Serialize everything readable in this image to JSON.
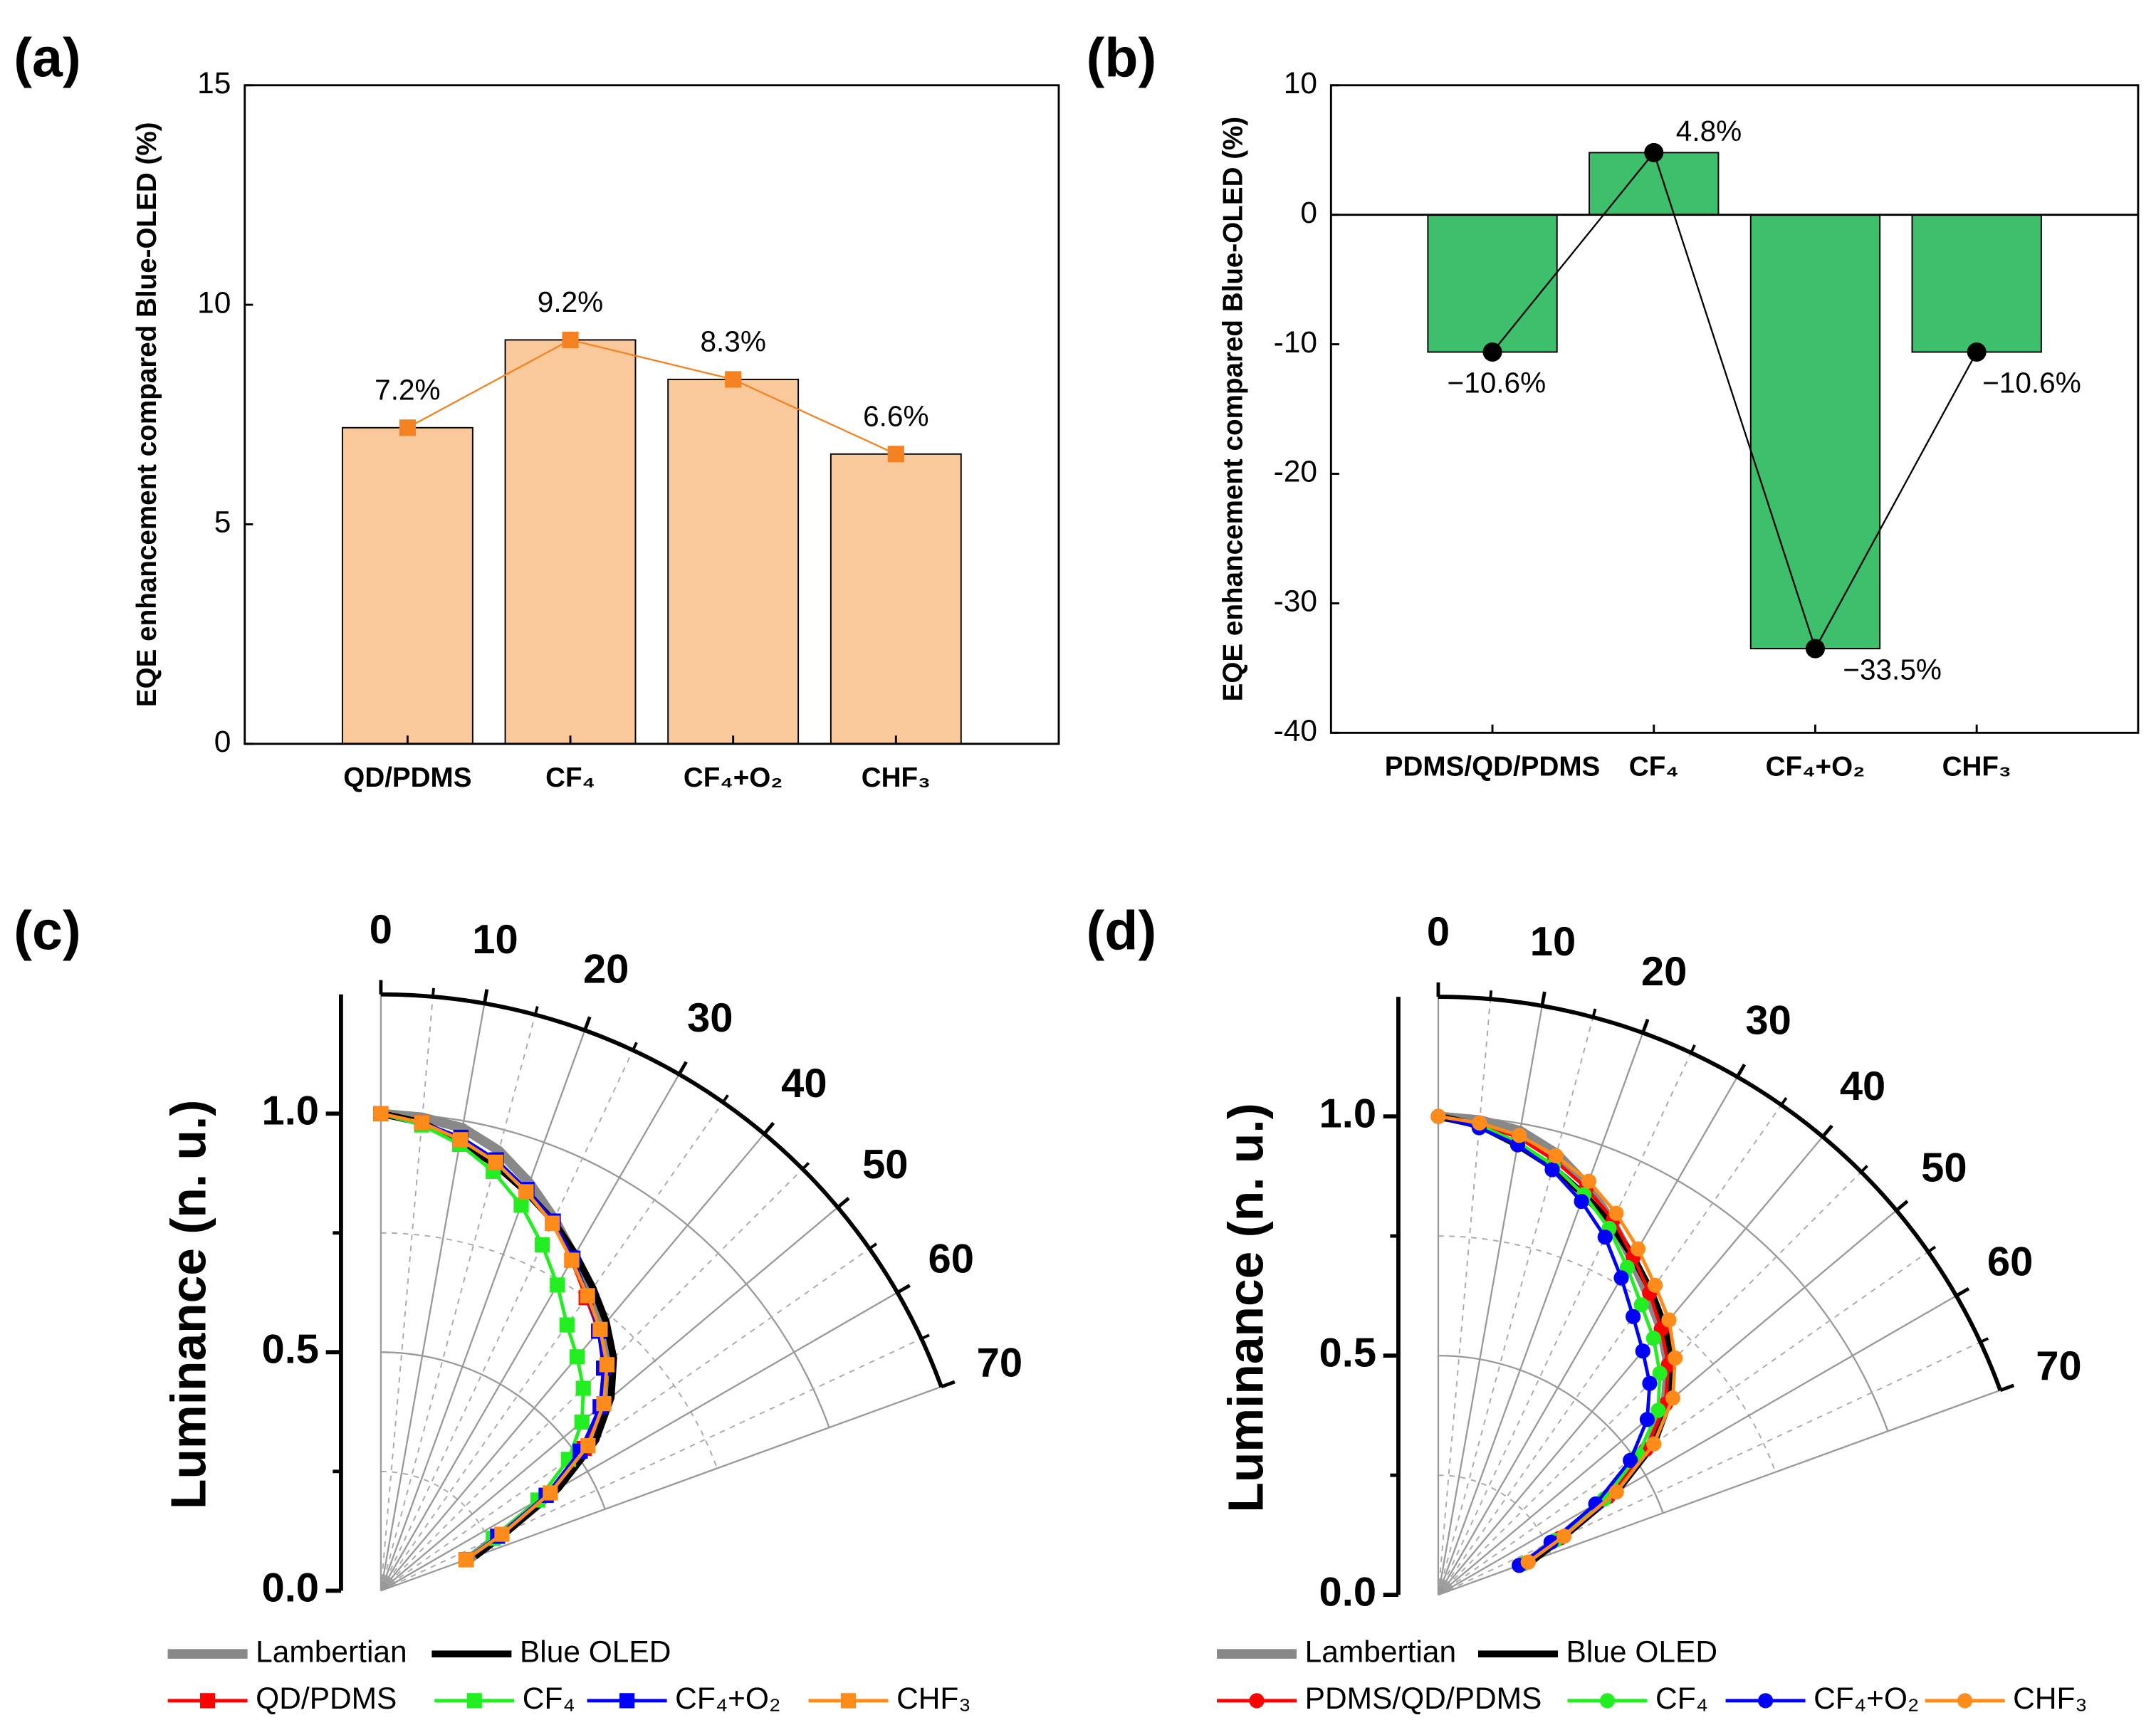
{
  "chart_data": [
    {
      "type": "bar",
      "panel_label": "(a)",
      "ylabel": "EQE enhancement compared Blue-OLED (%)",
      "categories": [
        "QD/PDMS",
        "CF₄",
        "CF₄+O₂",
        "CHF₃"
      ],
      "values": [
        7.2,
        9.2,
        8.3,
        6.6
      ],
      "value_labels": [
        "7.2%",
        "9.2%",
        "8.3%",
        "6.6%"
      ],
      "label_colors": [
        "#f58220",
        "#f58220",
        "#f58220",
        "#f58220"
      ],
      "bar_color": "#f9c89b",
      "line_color": "#f58220",
      "marker": "square",
      "ylim": [
        0,
        15
      ],
      "yticks": [
        0,
        5,
        10,
        15
      ]
    },
    {
      "type": "bar",
      "panel_label": "(b)",
      "ylabel": "EQE enhancement compared Blue-OLED (%)",
      "categories": [
        "PDMS/QD/PDMS",
        "CF₄",
        "CF₄+O₂",
        "CHF₃"
      ],
      "values": [
        -10.6,
        4.8,
        -33.5,
        -10.6
      ],
      "value_labels": [
        "−10.6%",
        "4.8%",
        "−33.5%",
        "−10.6%"
      ],
      "label_colors": [
        "#e8262a",
        "#000000",
        "#e8262a",
        "#e8262a"
      ],
      "bar_color": "#3dbf6b",
      "line_color": "#000000",
      "marker": "circle",
      "ylim": [
        -40,
        10
      ],
      "yticks": [
        -40,
        -30,
        -20,
        -10,
        0,
        10
      ]
    },
    {
      "type": "polar",
      "panel_label": "(c)",
      "ylabel": "Luminance (n. u.)",
      "theta": [
        0,
        5,
        10,
        15,
        20,
        25,
        30,
        35,
        40,
        45,
        50,
        55,
        60,
        65,
        70
      ],
      "thetalim": [
        0,
        70
      ],
      "thetaticks": [
        0,
        10,
        20,
        30,
        40,
        50,
        60,
        70
      ],
      "thetaminor": [
        5,
        15,
        25,
        35,
        45,
        55,
        65
      ],
      "rlim": [
        0,
        1.25
      ],
      "rticks": [
        {
          "value": 0,
          "label": "0.0"
        },
        {
          "value": 0.5,
          "label": "0.5"
        },
        {
          "value": 1,
          "label": "1.0"
        }
      ],
      "rminor": [
        0.25,
        0.75
      ],
      "series": [
        {
          "name": "Lambertian",
          "color": "#888888",
          "values": [
            1.0,
            0.996,
            0.985,
            0.955,
            0.91,
            0.86,
            0.81,
            0.765,
            0.725,
            0.68,
            0.62,
            0.54,
            0.42,
            0.28,
            0.2
          ]
        },
        {
          "name": "Blue OLED",
          "color": "#000000",
          "values": [
            1.0,
            0.985,
            0.955,
            0.925,
            0.89,
            0.855,
            0.815,
            0.775,
            0.735,
            0.69,
            0.63,
            0.55,
            0.43,
            0.29,
            0.21
          ]
        },
        {
          "name": "QD/PDMS",
          "color": "#ff0000",
          "marker": "square",
          "values": [
            1.0,
            0.985,
            0.96,
            0.93,
            0.89,
            0.85,
            0.8,
            0.75,
            0.71,
            0.66,
            0.6,
            0.52,
            0.4,
            0.27,
            0.19
          ]
        },
        {
          "name": "CF₄",
          "color": "#22ee22",
          "marker": "square",
          "values": [
            1.0,
            0.98,
            0.95,
            0.91,
            0.86,
            0.8,
            0.74,
            0.68,
            0.64,
            0.6,
            0.55,
            0.48,
            0.38,
            0.26,
            0.19
          ]
        },
        {
          "name": "CF₄+O₂",
          "color": "#0000ff",
          "marker": "square",
          "values": [
            1.0,
            0.985,
            0.965,
            0.935,
            0.895,
            0.855,
            0.805,
            0.755,
            0.71,
            0.66,
            0.6,
            0.51,
            0.4,
            0.27,
            0.19
          ]
        },
        {
          "name": "CHF₃",
          "color": "#ff8c1a",
          "marker": "square",
          "values": [
            1.0,
            0.985,
            0.96,
            0.93,
            0.89,
            0.85,
            0.8,
            0.755,
            0.715,
            0.67,
            0.61,
            0.53,
            0.41,
            0.28,
            0.19
          ]
        }
      ]
    },
    {
      "type": "polar",
      "panel_label": "(d)",
      "ylabel": "Luminance (n. u.)",
      "theta": [
        0,
        5,
        10,
        15,
        20,
        25,
        30,
        35,
        40,
        45,
        50,
        55,
        60,
        65,
        70
      ],
      "thetalim": [
        0,
        70
      ],
      "thetaticks": [
        0,
        10,
        20,
        30,
        40,
        50,
        60,
        70
      ],
      "thetaminor": [
        5,
        15,
        25,
        35,
        45,
        55,
        65
      ],
      "rlim": [
        0,
        1.25
      ],
      "rticks": [
        {
          "value": 0,
          "label": "0.0"
        },
        {
          "value": 0.5,
          "label": "0.5"
        },
        {
          "value": 1,
          "label": "1.0"
        }
      ],
      "rminor": [
        0.25,
        0.75
      ],
      "series": [
        {
          "name": "Lambertian",
          "color": "#888888",
          "values": [
            1.0,
            0.996,
            0.985,
            0.955,
            0.91,
            0.86,
            0.81,
            0.765,
            0.725,
            0.68,
            0.62,
            0.54,
            0.42,
            0.28,
            0.2
          ]
        },
        {
          "name": "Blue OLED",
          "color": "#000000",
          "values": [
            1.0,
            0.985,
            0.955,
            0.925,
            0.89,
            0.855,
            0.815,
            0.775,
            0.735,
            0.69,
            0.63,
            0.55,
            0.43,
            0.29,
            0.21
          ]
        },
        {
          "name": "PDMS/QD/PDMS",
          "color": "#ff0000",
          "marker": "circle",
          "values": [
            1.0,
            0.99,
            0.97,
            0.94,
            0.905,
            0.865,
            0.815,
            0.77,
            0.725,
            0.68,
            0.62,
            0.53,
            0.41,
            0.28,
            0.2
          ]
        },
        {
          "name": "CF₄",
          "color": "#22ee22",
          "marker": "circle",
          "values": [
            1.0,
            0.985,
            0.96,
            0.93,
            0.89,
            0.845,
            0.79,
            0.74,
            0.7,
            0.655,
            0.6,
            0.51,
            0.4,
            0.27,
            0.19
          ]
        },
        {
          "name": "CF₄+O₂",
          "color": "#0000ff",
          "marker": "circle",
          "values": [
            1.0,
            0.98,
            0.955,
            0.92,
            0.875,
            0.825,
            0.765,
            0.71,
            0.665,
            0.625,
            0.57,
            0.49,
            0.38,
            0.26,
            0.18
          ]
        },
        {
          "name": "CHF₃",
          "color": "#ff8c1a",
          "marker": "circle",
          "values": [
            1.0,
            0.99,
            0.975,
            0.95,
            0.92,
            0.88,
            0.835,
            0.79,
            0.75,
            0.7,
            0.64,
            0.55,
            0.43,
            0.29,
            0.2
          ]
        }
      ]
    }
  ]
}
